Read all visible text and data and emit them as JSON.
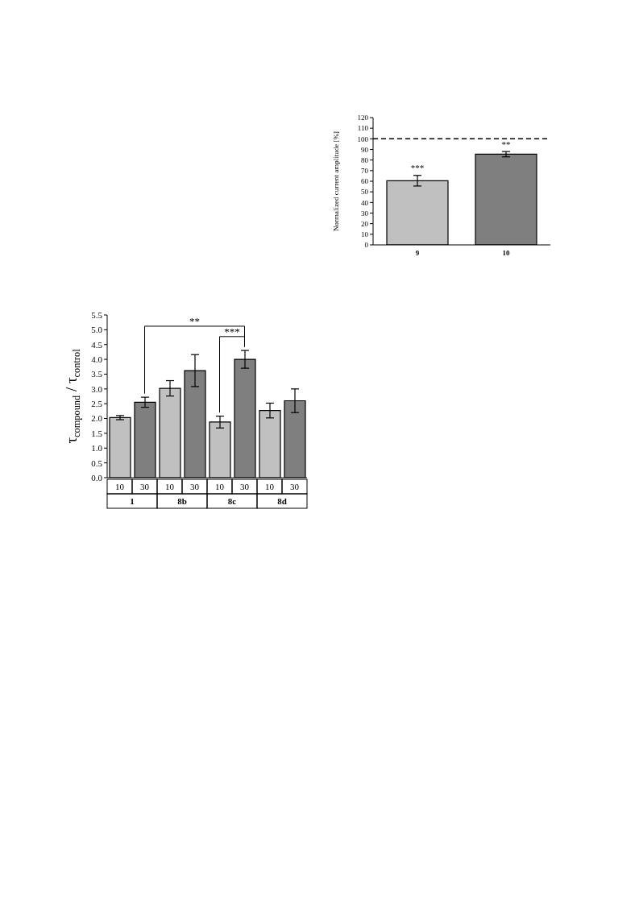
{
  "chart_data": [
    {
      "type": "bar",
      "categories": [
        "9",
        "10"
      ],
      "values": [
        60.5,
        85.5
      ],
      "colors": [
        "#c0c0c0",
        "#7f7f7f"
      ],
      "errors": [
        5,
        2.5
      ],
      "ylabel": "Normalized current amplitude [%]",
      "ylim": [
        0,
        120
      ],
      "yticks": [
        0,
        10,
        20,
        30,
        40,
        50,
        60,
        70,
        80,
        90,
        100,
        110,
        120
      ],
      "ref_lines": [
        {
          "axis": "y",
          "value": 100,
          "color": "#000000",
          "line_style": "dashed"
        }
      ],
      "annotations": [
        {
          "text": "***",
          "x": "9",
          "y": 66
        },
        {
          "text": "**",
          "x": "10",
          "y": 88
        }
      ],
      "grid": false,
      "legend": false
    },
    {
      "type": "bar",
      "categories": [
        "1",
        "8b",
        "8c",
        "8d"
      ],
      "series": [
        {
          "name": "10",
          "color": "#c0c0c0",
          "values": [
            2.03,
            3.02,
            1.88,
            2.27
          ],
          "errors": [
            0.07,
            0.26,
            0.2,
            0.25
          ]
        },
        {
          "name": "30",
          "color": "#7f7f7f",
          "values": [
            2.55,
            3.62,
            4.0,
            2.6
          ],
          "errors": [
            0.17,
            0.54,
            0.3,
            0.4
          ]
        }
      ],
      "ylabel": "τ$_{compound}$ / τ$_{control}$",
      "ylim": [
        0,
        5.5
      ],
      "yticks": [
        {
          "value": 0,
          "label": "0.0"
        },
        {
          "value": 0.5,
          "label": "0.5"
        },
        {
          "value": 1,
          "label": "1.0"
        },
        {
          "value": 1.5,
          "label": "1.5"
        },
        {
          "value": 2,
          "label": "2.0"
        },
        {
          "value": 2.5,
          "label": "2.5"
        },
        {
          "value": 3,
          "label": "3.0"
        },
        {
          "value": 3.5,
          "label": "3.5"
        },
        {
          "value": 4,
          "label": "4.0"
        },
        {
          "value": 4.5,
          "label": "4.5"
        },
        {
          "value": 5,
          "label": "5.0"
        },
        {
          "value": 5.5,
          "label": "5.5"
        }
      ],
      "annotations": [
        "**",
        "***"
      ],
      "grid": false,
      "legend": "bottom"
    }
  ]
}
